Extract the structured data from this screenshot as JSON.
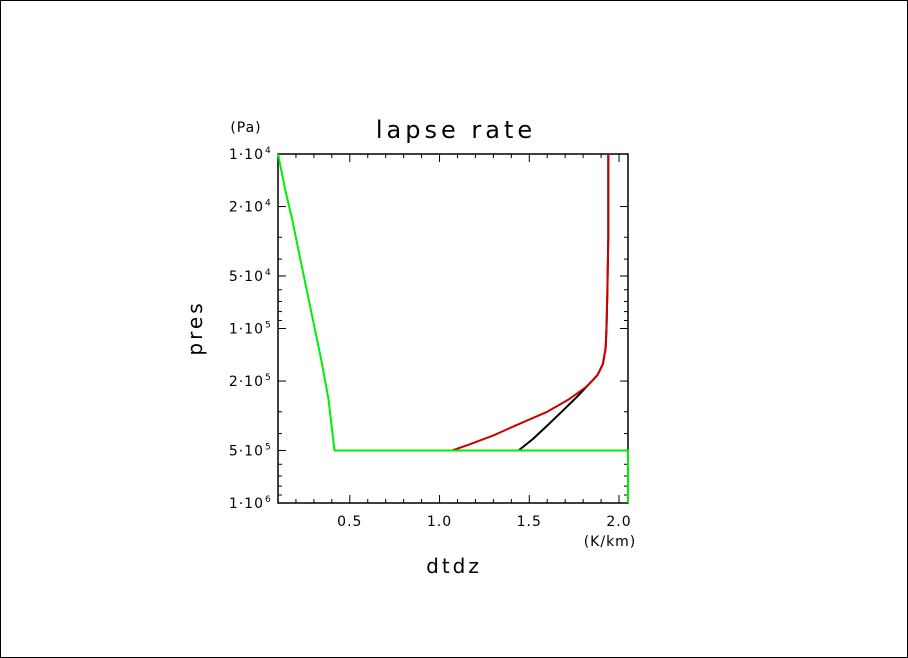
{
  "chart_data": {
    "type": "line",
    "title": "lapse rate",
    "xlabel": "dtdz",
    "xunit": "(K/km)",
    "ylabel": "pres",
    "yunit": "(Pa)",
    "xlim": [
      0.1,
      2.05
    ],
    "ylim": [
      10000,
      1000000
    ],
    "yscale": "log",
    "y_inverted": true,
    "grid": false,
    "x_ticks": [
      {
        "value": 0.5,
        "label": "0.5"
      },
      {
        "value": 1.0,
        "label": "1.0"
      },
      {
        "value": 1.5,
        "label": "1.5"
      },
      {
        "value": 2.0,
        "label": "2.0"
      }
    ],
    "y_ticks": [
      {
        "value": 10000,
        "mantissa": "1",
        "exponent": "4"
      },
      {
        "value": 20000,
        "mantissa": "2",
        "exponent": "4"
      },
      {
        "value": 50000,
        "mantissa": "5",
        "exponent": "4"
      },
      {
        "value": 100000,
        "mantissa": "1",
        "exponent": "5"
      },
      {
        "value": 200000,
        "mantissa": "2",
        "exponent": "5"
      },
      {
        "value": 500000,
        "mantissa": "5",
        "exponent": "5"
      },
      {
        "value": 1000000,
        "mantissa": "1",
        "exponent": "6"
      }
    ],
    "series": [
      {
        "color": "#000000",
        "points": [
          [
            1.94,
            10000
          ],
          [
            1.94,
            30000
          ],
          [
            1.935,
            60000
          ],
          [
            1.93,
            100000
          ],
          [
            1.925,
            130000
          ],
          [
            1.91,
            160000
          ],
          [
            1.88,
            185000
          ],
          [
            1.83,
            210000
          ],
          [
            1.76,
            250000
          ],
          [
            1.68,
            300000
          ],
          [
            1.6,
            360000
          ],
          [
            1.52,
            430000
          ],
          [
            1.44,
            500000
          ]
        ]
      },
      {
        "color": "#cc0000",
        "points": [
          [
            1.94,
            10000
          ],
          [
            1.94,
            30000
          ],
          [
            1.935,
            60000
          ],
          [
            1.93,
            100000
          ],
          [
            1.925,
            130000
          ],
          [
            1.91,
            160000
          ],
          [
            1.88,
            185000
          ],
          [
            1.82,
            215000
          ],
          [
            1.72,
            255000
          ],
          [
            1.6,
            300000
          ],
          [
            1.45,
            350000
          ],
          [
            1.3,
            410000
          ],
          [
            1.17,
            460000
          ],
          [
            1.07,
            500000
          ]
        ]
      },
      {
        "color": "#00ee00",
        "points": [
          [
            0.1,
            10000
          ],
          [
            0.14,
            16000
          ],
          [
            0.18,
            24000
          ],
          [
            0.22,
            38000
          ],
          [
            0.26,
            60000
          ],
          [
            0.3,
            95000
          ],
          [
            0.34,
            150000
          ],
          [
            0.38,
            250000
          ],
          [
            0.415,
            500000
          ],
          [
            2.05,
            500000
          ],
          [
            2.05,
            1000000
          ]
        ]
      }
    ]
  }
}
